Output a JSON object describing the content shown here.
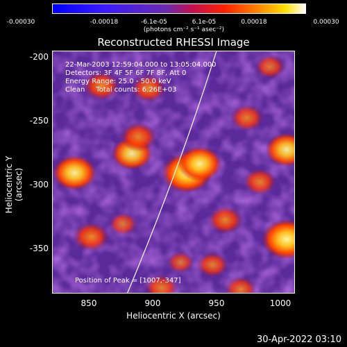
{
  "chart_data": {
    "type": "heatmap",
    "title": "Reconstructed RHESSI Image",
    "xlabel": "Heliocentric X (arcsec)",
    "ylabel": "Heliocentric Y (arcsec)",
    "xlim": [
      820,
      1010
    ],
    "ylim": [
      -385,
      -195
    ],
    "x_ticks": [
      "850",
      "900",
      "950",
      "1000"
    ],
    "y_ticks": [
      "-200",
      "-250",
      "-300",
      "-350"
    ],
    "colorbar": {
      "range": [
        -0.0003,
        0.0003
      ],
      "tick_labels": [
        "-0.00030",
        "-0.00018",
        "-6.1e-05",
        "6.1e-05",
        "0.00018",
        "0.00030"
      ],
      "unit_label": "(photons cm⁻² s⁻¹ asec⁻²)"
    },
    "info_lines": [
      "22-Mar-2003 12:59:04.000 to 13:05:04.000",
      "Detectors: 3F 4F 5F 6F 7F 8F, Att 0",
      "Energy Range: 25.0 - 50.0 keV",
      "Clean     Total counts: 6.26E+03"
    ],
    "peak_label": "Position of Peak = [1007,-347]",
    "peak_position": [
      1007,
      -347
    ],
    "blobs": [
      {
        "x": 925,
        "y": -290,
        "v": 1.0
      },
      {
        "x": 935,
        "y": -283,
        "v": 0.8
      },
      {
        "x": 1003,
        "y": -342,
        "v": 1.0
      },
      {
        "x": 1003,
        "y": -272,
        "v": 0.75
      },
      {
        "x": 837,
        "y": -290,
        "v": 0.8
      },
      {
        "x": 882,
        "y": -275,
        "v": 0.7
      },
      {
        "x": 887,
        "y": -262,
        "v": 0.55
      },
      {
        "x": 850,
        "y": -340,
        "v": 0.55
      },
      {
        "x": 955,
        "y": -327,
        "v": 0.5
      },
      {
        "x": 982,
        "y": -297,
        "v": 0.45
      },
      {
        "x": 858,
        "y": -222,
        "v": 0.55
      },
      {
        "x": 895,
        "y": -224,
        "v": 0.5
      },
      {
        "x": 905,
        "y": -380,
        "v": 0.45
      },
      {
        "x": 967,
        "y": -381,
        "v": 0.4
      },
      {
        "x": 972,
        "y": -247,
        "v": 0.45
      },
      {
        "x": 990,
        "y": -207,
        "v": 0.35
      },
      {
        "x": 945,
        "y": -362,
        "v": 0.4
      },
      {
        "x": 875,
        "y": -330,
        "v": 0.3
      },
      {
        "x": 920,
        "y": -360,
        "v": 0.25
      }
    ]
  },
  "footer": {
    "timestamp": "30-Apr-2022 03:10"
  }
}
